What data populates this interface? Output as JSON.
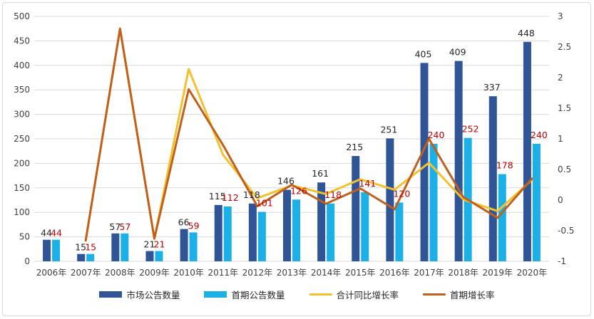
{
  "chart_data": {
    "type": "bar",
    "categories": [
      "2006年",
      "2007年",
      "2008年",
      "2009年",
      "2010年",
      "2011年",
      "2012年",
      "2013年",
      "2014年",
      "2015年",
      "2016年",
      "2017年",
      "2018年",
      "2019年",
      "2020年"
    ],
    "series": [
      {
        "name": "市场公告数量",
        "kind": "bar",
        "axis": "left",
        "color": "#2f5597",
        "values": [
          44,
          15,
          57,
          21,
          66,
          115,
          118,
          146,
          161,
          215,
          251,
          405,
          409,
          337,
          448
        ]
      },
      {
        "name": "首期公告数量",
        "kind": "bar",
        "axis": "left",
        "color": "#1cb0e8",
        "values": [
          44,
          15,
          57,
          21,
          59,
          112,
          101,
          126,
          118,
          141,
          120,
          240,
          252,
          178,
          240
        ]
      },
      {
        "name": "合计同比增长率",
        "kind": "line",
        "axis": "right",
        "color": "#f2c12e",
        "values": [
          null,
          -0.66,
          2.8,
          -0.63,
          2.14,
          0.74,
          0.03,
          0.24,
          0.1,
          0.34,
          0.17,
          0.61,
          0.01,
          -0.18,
          0.33
        ]
      },
      {
        "name": "首期增长率",
        "kind": "line",
        "axis": "right",
        "color": "#c0601c",
        "values": [
          null,
          -0.66,
          2.8,
          -0.63,
          1.81,
          0.9,
          -0.1,
          0.25,
          -0.06,
          0.19,
          -0.15,
          1.0,
          0.05,
          -0.29,
          0.35
        ]
      }
    ],
    "left_axis": {
      "ylim": [
        0,
        500
      ],
      "ticks": [
        "0",
        "50",
        "100",
        "150",
        "200",
        "250",
        "300",
        "350",
        "400",
        "450",
        "500"
      ]
    },
    "right_axis": {
      "ylim": [
        -1,
        3
      ],
      "ticks": [
        "-1",
        "-0.5",
        "0",
        "0.5",
        "1",
        "1.5",
        "2",
        "2.5",
        "3"
      ]
    },
    "data_labels": {
      "main": [
        "44",
        "15",
        "57",
        "21",
        "66",
        "115",
        "118",
        "146",
        "161",
        "215",
        "251",
        "405",
        "409",
        "337",
        "448"
      ],
      "first": [
        "44",
        "15",
        "57",
        "21",
        "59",
        "112",
        "101",
        "126",
        "118",
        "141",
        "120",
        "240",
        "252",
        "178",
        "240"
      ]
    },
    "grid": "horizontal",
    "legend_position": "bottom"
  }
}
